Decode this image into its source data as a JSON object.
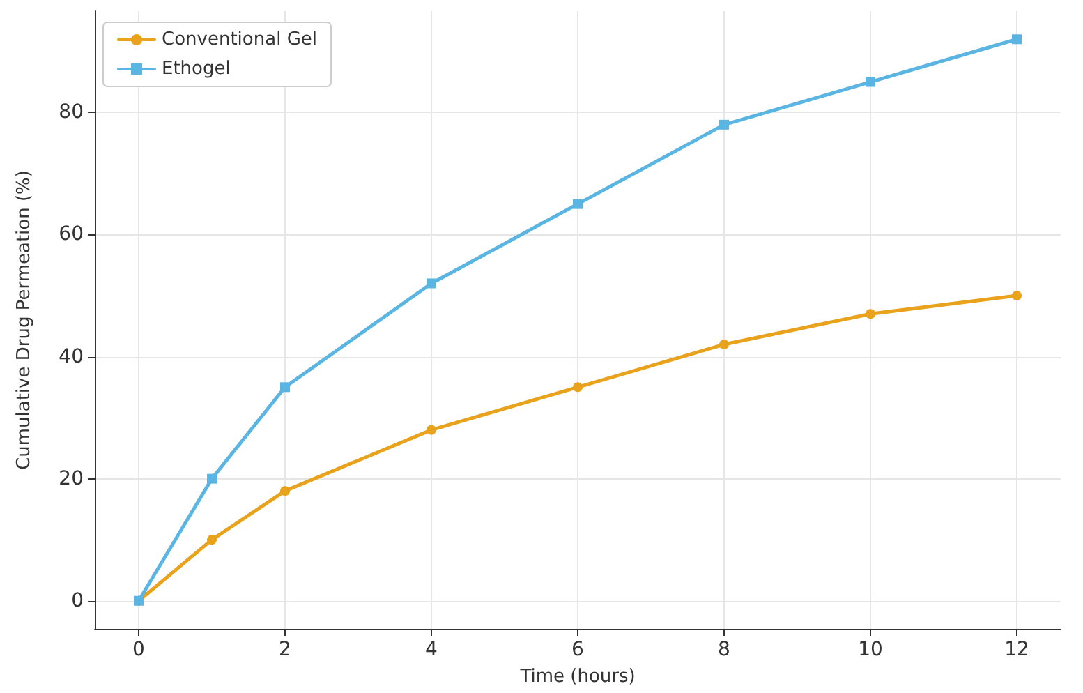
{
  "chart_data": {
    "type": "line",
    "xlabel": "Time (hours)",
    "ylabel": "Cumulative Drug Permeation (%)",
    "x": [
      0,
      1,
      2,
      4,
      6,
      8,
      10,
      12
    ],
    "series": [
      {
        "name": "Conventional Gel",
        "color": "#e8a21c",
        "marker": "circle",
        "values": [
          0,
          10,
          18,
          28,
          35,
          42,
          47,
          50
        ]
      },
      {
        "name": "Ethogel",
        "color": "#5bb5e3",
        "marker": "square",
        "values": [
          0,
          20,
          35,
          52,
          65,
          78,
          85,
          92
        ]
      }
    ],
    "xlim": [
      -0.6,
      12.6
    ],
    "xticks": [
      0,
      2,
      4,
      6,
      8,
      10,
      12
    ],
    "ylim": [
      -4.6,
      96.6
    ],
    "yticks": [
      0,
      20,
      40,
      60,
      80
    ],
    "grid": true,
    "legend": "top left",
    "line_style": "solid"
  }
}
